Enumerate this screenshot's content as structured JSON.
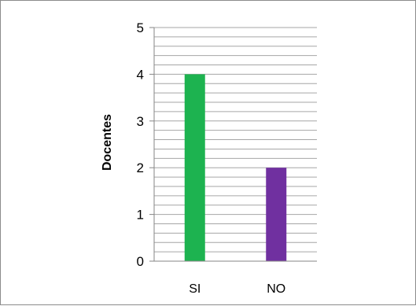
{
  "chart_data": {
    "type": "bar",
    "title": "",
    "xlabel": "",
    "ylabel": "Docentes",
    "categories": [
      "SI",
      "NO"
    ],
    "values": [
      4,
      2
    ],
    "bar_colors": [
      "#1db350",
      "#7030a0"
    ],
    "ylim": [
      0,
      5
    ],
    "yticks": [
      "0",
      "1",
      "2",
      "3",
      "4",
      "5"
    ],
    "minor_gridlines_per_unit": 5,
    "grid": true,
    "legend": "none"
  }
}
